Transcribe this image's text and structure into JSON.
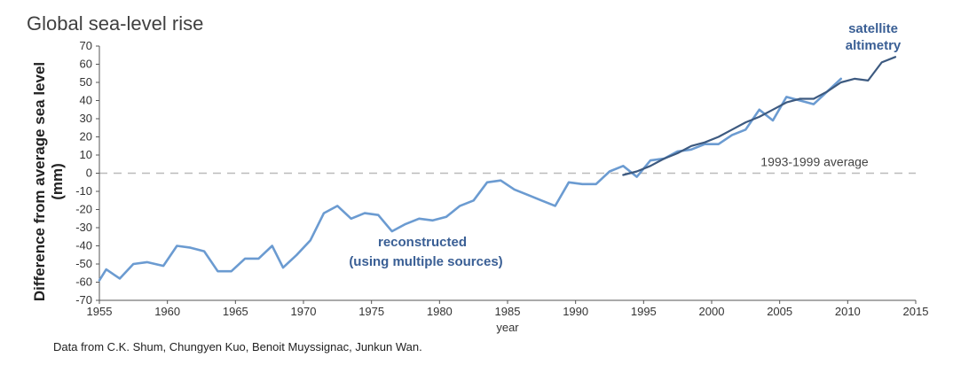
{
  "chart_data": {
    "type": "line",
    "title": "Global sea-level rise",
    "xlabel": "year",
    "ylabel": "Difference from average sea level (mm)",
    "ylabel_lines": [
      "Difference from average sea level",
      "(mm)"
    ],
    "xlim": [
      1955,
      2015
    ],
    "ylim": [
      -70,
      70
    ],
    "x_ticks": [
      "1955",
      "1960",
      "1965",
      "1970",
      "1975",
      "1980",
      "1985",
      "1990",
      "1995",
      "2000",
      "2005",
      "2010",
      "2015"
    ],
    "y_ticks": [
      "70",
      "60",
      "50",
      "40",
      "30",
      "20",
      "10",
      "0",
      "-10",
      "-20",
      "-30",
      "-40",
      "-50",
      "-60",
      "-70"
    ],
    "grid": false,
    "reference_line": {
      "y": 0,
      "label": "1993-1999 average",
      "color": "#bbbbbb"
    },
    "series": [
      {
        "name": "reconstructed (using multiple sources)",
        "label_lines": [
          "reconstructed",
          "(using multiple sources)"
        ],
        "color": "#6b9bd1",
        "label_color": "#3a5f95",
        "x": [
          1955,
          1955.5,
          1956.5,
          1957.5,
          1958.5,
          1959.7,
          1960.7,
          1961.7,
          1962.7,
          1963.7,
          1964.7,
          1965.7,
          1966.7,
          1967.7,
          1968.5,
          1969.5,
          1970.5,
          1971.5,
          1972.5,
          1973.5,
          1974.5,
          1975.5,
          1976.5,
          1977.5,
          1978.5,
          1979.5,
          1980.5,
          1981.5,
          1982.5,
          1983.5,
          1984.5,
          1985.5,
          1986.5,
          1987.5,
          1988.5,
          1989.5,
          1990.5,
          1991.5,
          1992.5,
          1993.5,
          1994.5,
          1995.5,
          1996.5,
          1997.5,
          1998.5,
          1999.5,
          2000.5,
          2001.5,
          2002.5,
          2003.5,
          2004.5,
          2005.5,
          2006.5,
          2007.5,
          2008.5,
          2009.5
        ],
        "y": [
          -59,
          -53,
          -58,
          -50,
          -49,
          -51,
          -40,
          -41,
          -43,
          -54,
          -54,
          -47,
          -47,
          -40,
          -52,
          -45,
          -37,
          -22,
          -18,
          -25,
          -22,
          -23,
          -32,
          -28,
          -25,
          -26,
          -24,
          -18,
          -15,
          -5,
          -4,
          -9,
          -12,
          -15,
          -18,
          -5,
          -6,
          -6,
          1,
          4,
          -2,
          7,
          8,
          12,
          13,
          16,
          16,
          21,
          24,
          35,
          29,
          42,
          40,
          38,
          45,
          52
        ]
      },
      {
        "name": "satellite altimetry",
        "label_lines": [
          "satellite",
          "altimetry"
        ],
        "color": "#3d5a80",
        "label_color": "#3a5f95",
        "x": [
          1993.5,
          1994.5,
          1995.5,
          1996.5,
          1997.5,
          1998.5,
          1999.5,
          2000.5,
          2001.5,
          2002.5,
          2003.5,
          2004.5,
          2005.5,
          2006.5,
          2007.5,
          2008.5,
          2009.5,
          2010.5,
          2011.5,
          2012.5,
          2013.5
        ],
        "y": [
          -1,
          1,
          4,
          8,
          11,
          15,
          17,
          20,
          24,
          28,
          31,
          35,
          39,
          41,
          41,
          45,
          50,
          52,
          51,
          61,
          64
        ]
      }
    ],
    "source_note": "Data from C.K. Shum, Chungyen Kuo, Benoit Muyssignac, Junkun Wan."
  }
}
